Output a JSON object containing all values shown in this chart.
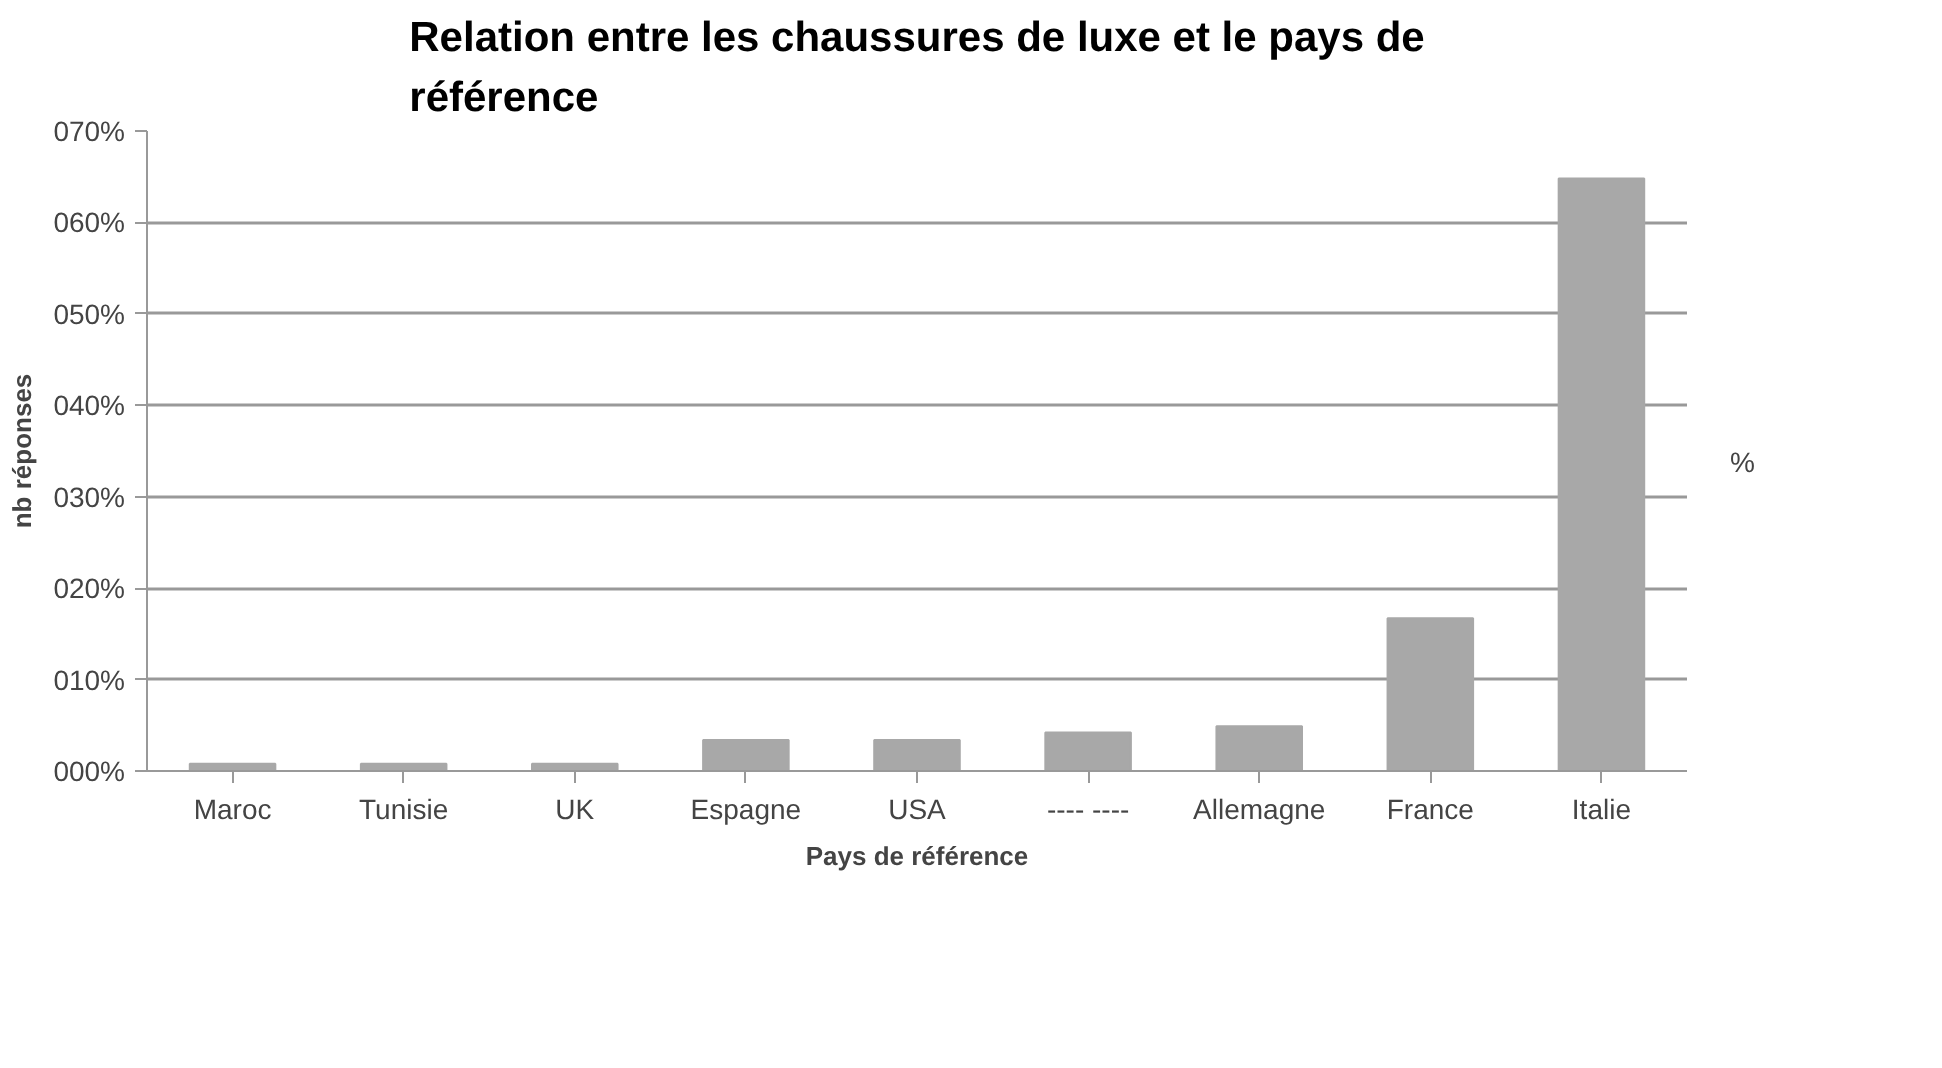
{
  "chart_data": {
    "type": "bar",
    "title": "Relation entre les chaussures de luxe et le pays de référence",
    "xlabel": "Pays de référence",
    "ylabel": "nb réponses",
    "categories": [
      "Maroc",
      "Tunisie",
      "UK",
      "Espagne",
      "USA",
      "---- ----",
      "Allemagne",
      "France",
      "Italie"
    ],
    "series": [
      {
        "name": "%",
        "color": "#a8a8a8",
        "values": [
          0.8,
          0.8,
          0.8,
          3.4,
          3.4,
          4.2,
          4.9,
          16.7,
          64.8
        ]
      }
    ],
    "ylim": [
      0,
      70
    ],
    "yticks": [
      {
        "value": 0,
        "label": "000%"
      },
      {
        "value": 10,
        "label": "010%"
      },
      {
        "value": 20,
        "label": "020%"
      },
      {
        "value": 30,
        "label": "030%"
      },
      {
        "value": 40,
        "label": "040%"
      },
      {
        "value": 50,
        "label": "050%"
      },
      {
        "value": 60,
        "label": "060%"
      },
      {
        "value": 70,
        "label": "070%"
      }
    ],
    "grid": "y",
    "legend": "right"
  }
}
